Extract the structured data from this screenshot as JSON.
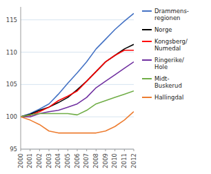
{
  "chart_data": {
    "type": "line",
    "x": [
      2000,
      2001,
      2002,
      2003,
      2004,
      2005,
      2006,
      2007,
      2008,
      2009,
      2010,
      2011,
      2012
    ],
    "xlim": [
      2000,
      2012
    ],
    "xticks": [
      2000,
      2001,
      2002,
      2003,
      2004,
      2005,
      2006,
      2007,
      2008,
      2009,
      2010,
      2011,
      2012
    ],
    "series": [
      {
        "name": "Drammens-\nregionen",
        "color": "#4472C4",
        "values": [
          100,
          100.5,
          101.2,
          102.0,
          103.5,
          105.2,
          106.8,
          108.5,
          110.5,
          112.0,
          113.5,
          114.8,
          116.0
        ]
      },
      {
        "name": "Norge",
        "color": "#000000",
        "values": [
          100,
          100.4,
          101.0,
          101.5,
          102.2,
          103.0,
          104.2,
          105.5,
          107.0,
          108.5,
          109.5,
          110.5,
          111.2
        ]
      },
      {
        "name": "Kongsberg/\nNumedal",
        "color": "#FF0000",
        "values": [
          100,
          100.2,
          100.8,
          101.5,
          102.5,
          103.2,
          104.0,
          105.5,
          107.0,
          108.5,
          109.5,
          110.3,
          110.3
        ]
      },
      {
        "name": "Ringerike/\nHole",
        "color": "#7030A0",
        "values": [
          100,
          100.0,
          100.5,
          100.8,
          101.0,
          101.5,
          102.0,
          103.0,
          104.5,
          105.5,
          106.5,
          107.5,
          108.5
        ]
      },
      {
        "name": "Midt-\nBuskerud",
        "color": "#70AD47",
        "values": [
          100,
          100.3,
          100.5,
          100.5,
          100.5,
          100.5,
          100.3,
          101.0,
          102.0,
          102.5,
          103.0,
          103.5,
          104.0
        ]
      },
      {
        "name": "Hallingdal",
        "color": "#ED7D31",
        "values": [
          100,
          99.5,
          98.8,
          97.8,
          97.5,
          97.5,
          97.5,
          97.5,
          97.5,
          97.8,
          98.5,
          99.5,
          100.8
        ]
      }
    ],
    "ylim": [
      95,
      117
    ],
    "yticks": [
      95,
      100,
      105,
      110,
      115
    ],
    "grid": true,
    "legend": "right"
  }
}
